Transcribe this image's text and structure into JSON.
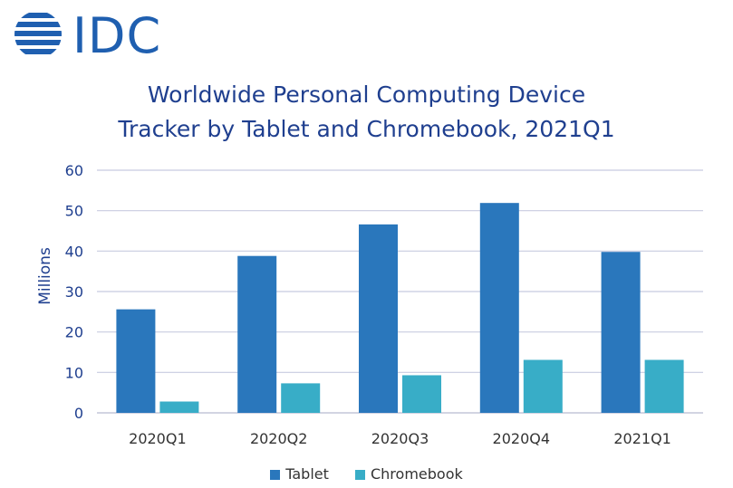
{
  "logo": {
    "text": "IDC"
  },
  "title_lines": [
    "Worldwide Personal Computing Device",
    "Tracker by Tablet and Chromebook, 2021Q1"
  ],
  "colors": {
    "tablet": "#2a77bc",
    "chromebook": "#38adc7",
    "grid": "#c8cbe0",
    "title": "#1f3f8f",
    "axis_text": "#1f3f8f",
    "logo": "#1f5fb0"
  },
  "chart_data": {
    "type": "bar",
    "title": "Worldwide Personal Computing Device Tracker by Tablet and Chromebook, 2021Q1",
    "categories": [
      "2020Q1",
      "2020Q2",
      "2020Q3",
      "2020Q4",
      "2021Q1"
    ],
    "series": [
      {
        "name": "Tablet",
        "values": [
          25.6,
          38.8,
          46.6,
          51.9,
          39.8
        ]
      },
      {
        "name": "Chromebook",
        "values": [
          2.8,
          7.3,
          9.3,
          13.1,
          13.1
        ]
      }
    ],
    "ylabel": "Millions",
    "xlabel": "",
    "ylim": [
      0,
      60
    ],
    "yticks": [
      "0",
      "10",
      "20",
      "30",
      "40",
      "50",
      "60"
    ],
    "grid": true,
    "legend": "bottom"
  }
}
